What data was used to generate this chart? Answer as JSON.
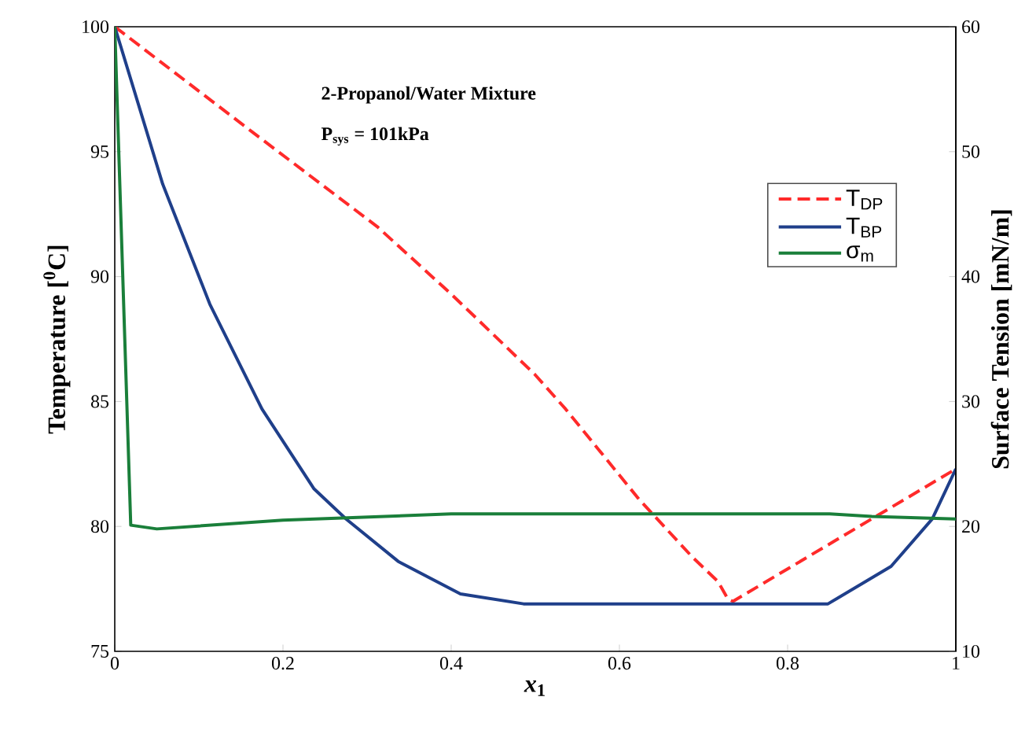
{
  "chart_data": {
    "type": "line",
    "xlabel": "*x*$_{1}$",
    "ylabel": "Temperature [$^{0}$C]",
    "y2label": "Surface Tension [mN/m]",
    "annotations": [
      "2-Propanol/Water Mixture",
      "P$_{sys}$ = 101kPa"
    ],
    "xlim": [
      0,
      1
    ],
    "xticks": [
      0,
      0.2,
      0.4,
      0.6,
      0.8,
      1
    ],
    "ylim": [
      75,
      100
    ],
    "yticks": [
      75,
      80,
      85,
      90,
      95,
      100
    ],
    "y2lim": [
      10,
      60
    ],
    "y2ticks": [
      10,
      20,
      30,
      40,
      50,
      60
    ],
    "grid": false,
    "legend": "top right",
    "series": [
      {
        "name": "T$_{DP}$",
        "color": "#ff2a2a",
        "line_style": "dashed",
        "x": [
          0,
          0.163,
          0.312,
          0.4,
          0.499,
          0.536,
          0.623,
          0.686,
          0.717,
          0.729,
          0.735,
          1
        ],
        "values": [
          100,
          95.8,
          92.0,
          89.3,
          86.1,
          84.7,
          81.1,
          78.8,
          77.8,
          77.1,
          77.0,
          82.3
        ]
      },
      {
        "name": "T$_{BP}$",
        "color": "#1f3f8a",
        "line_style": "solid",
        "x": [
          0,
          0.057,
          0.113,
          0.175,
          0.237,
          0.275,
          0.337,
          0.411,
          0.486,
          0.848,
          0.923,
          0.972,
          1
        ],
        "values": [
          100,
          93.7,
          88.9,
          84.7,
          81.5,
          80.3,
          78.6,
          77.3,
          76.9,
          76.9,
          78.4,
          80.3,
          82.3
        ]
      },
      {
        "name": "σ$_{m}$",
        "color": "#1a7f3a",
        "line_style": "solid",
        "axis": "y2",
        "x": [
          0,
          0.019,
          0.05,
          0.2,
          0.4,
          0.85,
          0.9,
          1
        ],
        "values": [
          60,
          20.1,
          19.8,
          20.5,
          21.0,
          21.0,
          20.8,
          20.6
        ]
      }
    ]
  }
}
